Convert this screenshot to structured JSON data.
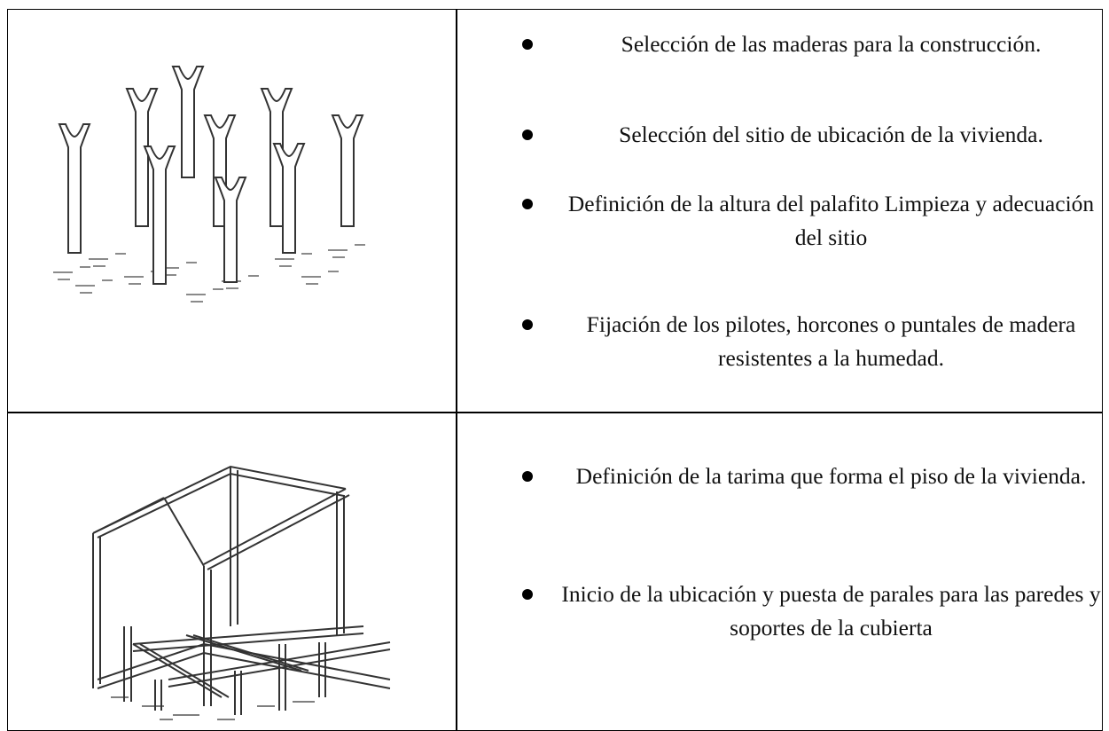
{
  "table": {
    "rows": [
      {
        "items": [
          "Selección de las maderas para la construcción.",
          "Selección del sitio de ubicación de la vivienda.",
          "Definición de la altura del palafito Limpieza y adecuación del sitio",
          "Fijación de los pilotes, horcones o puntales de madera resistentes a la humedad."
        ]
      },
      {
        "items": [
          "Definición de la tarima que forma el piso de la vivienda.",
          "Inicio de la ubicación y puesta de parales para las paredes y soportes de la cubierta"
        ]
      }
    ]
  }
}
